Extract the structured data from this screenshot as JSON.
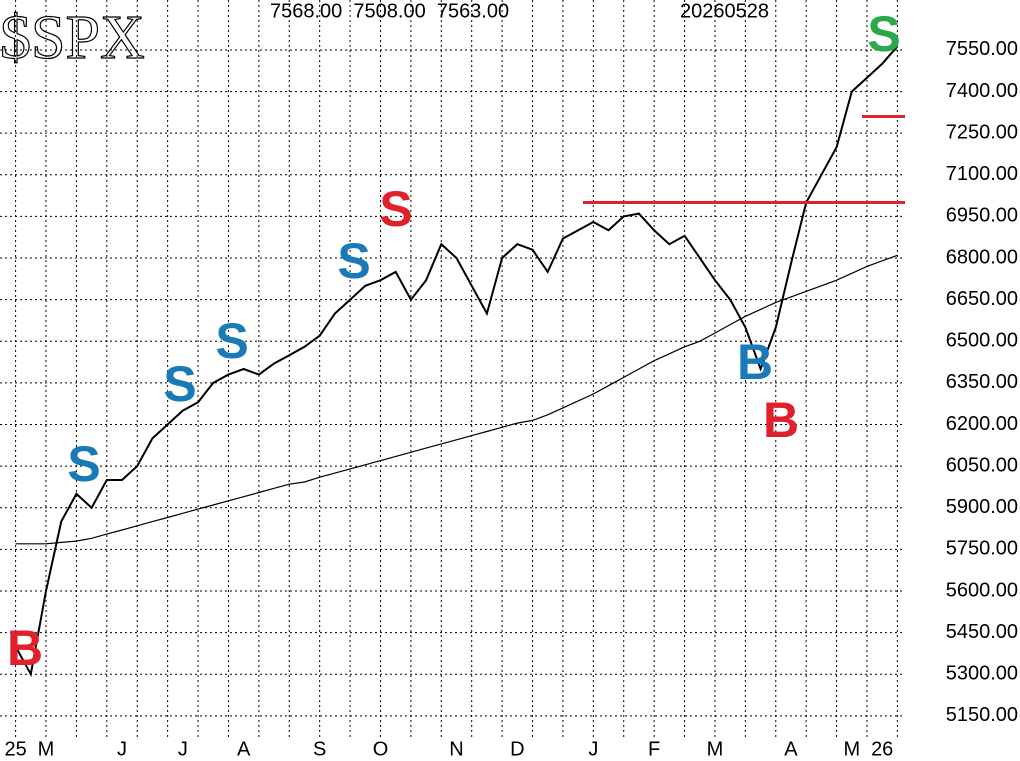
{
  "chart_data": {
    "type": "line",
    "title": "$SPX",
    "ohlc_label": "7568.00  7508.00  7563.00",
    "date_label": "20260528",
    "categories": [
      "25",
      null,
      "M",
      null,
      null,
      null,
      null,
      "J",
      null,
      null,
      null,
      "J",
      null,
      null,
      null,
      "A",
      null,
      null,
      null,
      null,
      "S",
      null,
      null,
      null,
      "O",
      null,
      null,
      null,
      null,
      "N",
      null,
      null,
      null,
      "D",
      null,
      null,
      null,
      null,
      "J",
      null,
      null,
      null,
      "F",
      null,
      null,
      null,
      "M",
      null,
      null,
      null,
      null,
      "A",
      null,
      null,
      null,
      "M",
      null,
      "26",
      null
    ],
    "series": [
      {
        "color": "#000000",
        "values": [
          5400,
          5300,
          5600,
          5850,
          5950,
          5900,
          6000,
          6000,
          6050,
          6150,
          6200,
          6250,
          6280,
          6350,
          6380,
          6400,
          6380,
          6420,
          6450,
          6480,
          6520,
          6600,
          6650,
          6700,
          6720,
          6750,
          6650,
          6720,
          6850,
          6800,
          6700,
          6600,
          6800,
          6850,
          6830,
          6750,
          6870,
          6900,
          6930,
          6900,
          6950,
          6960,
          6900,
          6850,
          6880,
          6800,
          6720,
          6650,
          6550,
          6400,
          6550,
          6780,
          7000,
          7100,
          7200,
          7400,
          7450,
          7500,
          7563
        ]
      },
      {
        "color": "#000000",
        "values": [
          5770,
          5770,
          5770,
          5775,
          5780,
          5790,
          5805,
          5820,
          5835,
          5850,
          5865,
          5880,
          5895,
          5910,
          5925,
          5940,
          5955,
          5970,
          5985,
          5993,
          6010,
          6025,
          6040,
          6055,
          6070,
          6085,
          6100,
          6115,
          6130,
          6145,
          6160,
          6175,
          6190,
          6205,
          6215,
          6235,
          6260,
          6285,
          6310,
          6340,
          6370,
          6400,
          6430,
          6455,
          6480,
          6500,
          6530,
          6560,
          6590,
          6615,
          6640,
          6660,
          6680,
          6700,
          6720,
          6745,
          6770,
          6790,
          6810
        ]
      }
    ],
    "reference_lines": [
      {
        "value": 7000,
        "color": "#e0202a"
      },
      {
        "value": 7310,
        "color": "#e0202a"
      }
    ],
    "annotations": [
      {
        "text": "B",
        "color": "#e0202a"
      },
      {
        "text": "S",
        "color": "#1a7ab8"
      },
      {
        "text": "S",
        "color": "#1a7ab8"
      },
      {
        "text": "S",
        "color": "#1a7ab8"
      },
      {
        "text": "S",
        "color": "#1a7ab8"
      },
      {
        "text": "S",
        "color": "#e0202a"
      },
      {
        "text": "B",
        "color": "#1a7ab8"
      },
      {
        "text": "B",
        "color": "#e0202a"
      },
      {
        "text": "S",
        "color": "#2aa84a"
      }
    ],
    "ylim": [
      5063,
      7730
    ],
    "yticks": [
      {
        "value": 5150,
        "label": "5150.00"
      },
      {
        "value": 5300,
        "label": "5300.00"
      },
      {
        "value": 5450,
        "label": "5450.00"
      },
      {
        "value": 5600,
        "label": "5600.00"
      },
      {
        "value": 5750,
        "label": "5750.00"
      },
      {
        "value": 5900,
        "label": "5900.00"
      },
      {
        "value": 6050,
        "label": "6050.00"
      },
      {
        "value": 6200,
        "label": "6200.00"
      },
      {
        "value": 6350,
        "label": "6350.00"
      },
      {
        "value": 6500,
        "label": "6500.00"
      },
      {
        "value": 6650,
        "label": "6650.00"
      },
      {
        "value": 6800,
        "label": "6800.00"
      },
      {
        "value": 6950,
        "label": "6950.00"
      },
      {
        "value": 7100,
        "label": "7100.00"
      },
      {
        "value": 7250,
        "label": "7250.00"
      },
      {
        "value": 7400,
        "label": "7400.00"
      },
      {
        "value": 7550,
        "label": "7550.00"
      }
    ],
    "grid": true
  }
}
